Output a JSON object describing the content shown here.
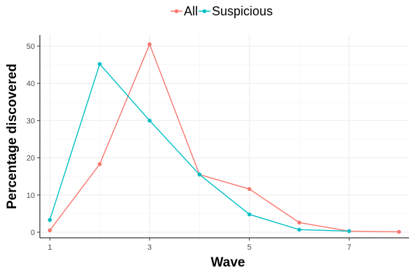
{
  "chart_data": {
    "type": "line",
    "xlabel": "Wave",
    "ylabel": "Percentage discovered",
    "xlim": [
      0.8,
      8.2
    ],
    "ylim": [
      -1.5,
      53
    ],
    "x_ticks": [
      1,
      3,
      5,
      7
    ],
    "y_ticks": [
      0,
      10,
      20,
      30,
      40,
      50
    ],
    "grid": true,
    "legend_position": "top",
    "series": [
      {
        "name": "All",
        "color": "#F8766D",
        "x": [
          1,
          2,
          3,
          4,
          5,
          6,
          7,
          8
        ],
        "values": [
          0.5,
          18.3,
          50.5,
          15.5,
          11.6,
          2.6,
          0.3,
          0.1
        ]
      },
      {
        "name": "Suspicious",
        "color": "#00BFC4",
        "x": [
          1,
          2,
          3,
          4,
          5,
          6,
          7
        ],
        "values": [
          3.3,
          45.2,
          30.0,
          15.5,
          4.8,
          0.7,
          0.3
        ]
      }
    ]
  }
}
